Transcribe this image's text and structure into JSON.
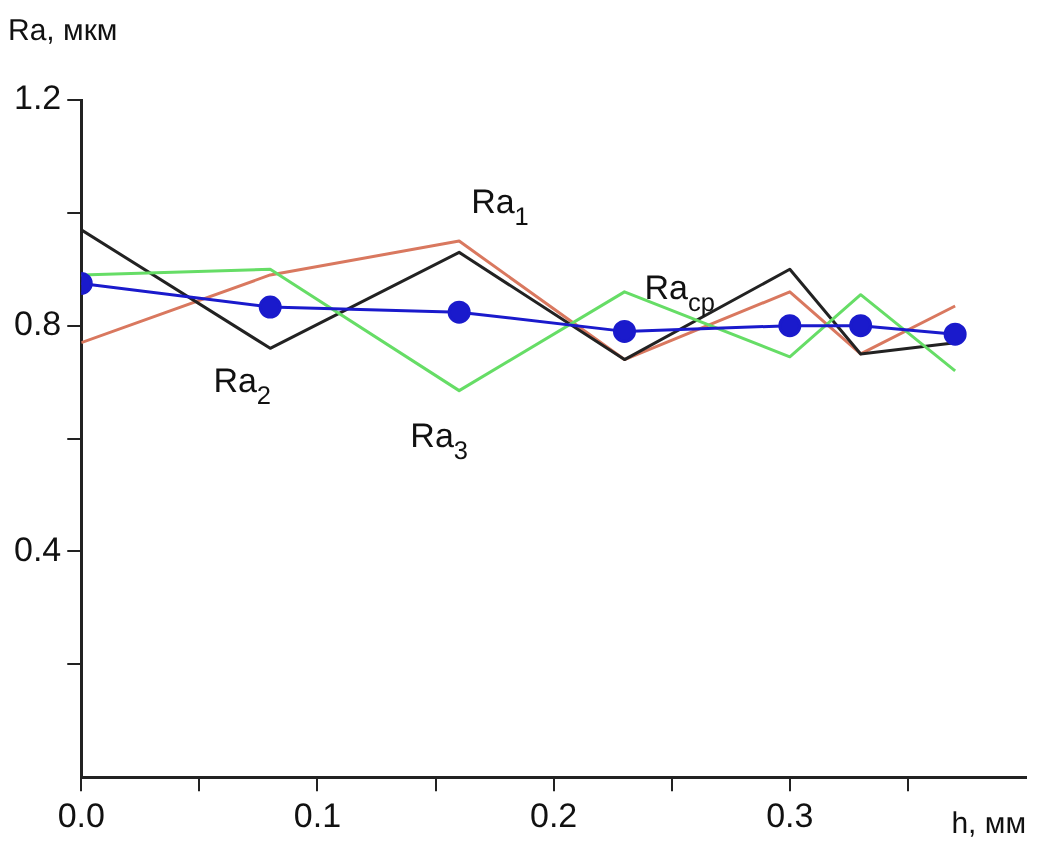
{
  "chart_data": {
    "type": "line",
    "xlabel": "h, мм",
    "ylabel": "Ra, мкм",
    "x": [
      0,
      0.08,
      0.16,
      0.23,
      0.3,
      0.33,
      0.37
    ],
    "xlim": [
      0,
      0.4
    ],
    "xticks": [
      {
        "value": 0,
        "label": "0.0"
      },
      {
        "value": 0.05,
        "label": null
      },
      {
        "value": 0.1,
        "label": "0.1"
      },
      {
        "value": 0.15,
        "label": null
      },
      {
        "value": 0.2,
        "label": "0.2"
      },
      {
        "value": 0.25,
        "label": null
      },
      {
        "value": 0.3,
        "label": "0.3"
      },
      {
        "value": 0.35,
        "label": null
      }
    ],
    "ylim": [
      0,
      1.2
    ],
    "yticks": [
      {
        "value": 0.2,
        "label": null
      },
      {
        "value": 0.4,
        "label": "0.4"
      },
      {
        "value": 0.6,
        "label": null
      },
      {
        "value": 0.8,
        "label": "0.8"
      },
      {
        "value": 1.0,
        "label": null
      },
      {
        "value": 1.2,
        "label": "1.2"
      }
    ],
    "grid": false,
    "legend": false,
    "series": [
      {
        "name": "Ra$_{1}$",
        "color": "#d9785f",
        "marker": "none",
        "values": [
          0.77,
          0.89,
          0.95,
          0.74,
          0.86,
          0.75,
          0.835
        ]
      },
      {
        "name": "Ra$_{2}$",
        "color": "#222222",
        "marker": "none",
        "values": [
          0.97,
          0.76,
          0.93,
          0.74,
          0.9,
          0.75,
          0.77
        ]
      },
      {
        "name": "Ra$_{3}$",
        "color": "#66dd66",
        "marker": "none",
        "values": [
          0.89,
          0.9,
          0.685,
          0.86,
          0.745,
          0.855,
          0.72
        ]
      },
      {
        "name": "Ra$_{ср}$",
        "color": "#1a1acc",
        "marker": "circle",
        "values": [
          0.875,
          0.833,
          0.824,
          0.79,
          0.8,
          0.8,
          0.785
        ]
      }
    ]
  }
}
